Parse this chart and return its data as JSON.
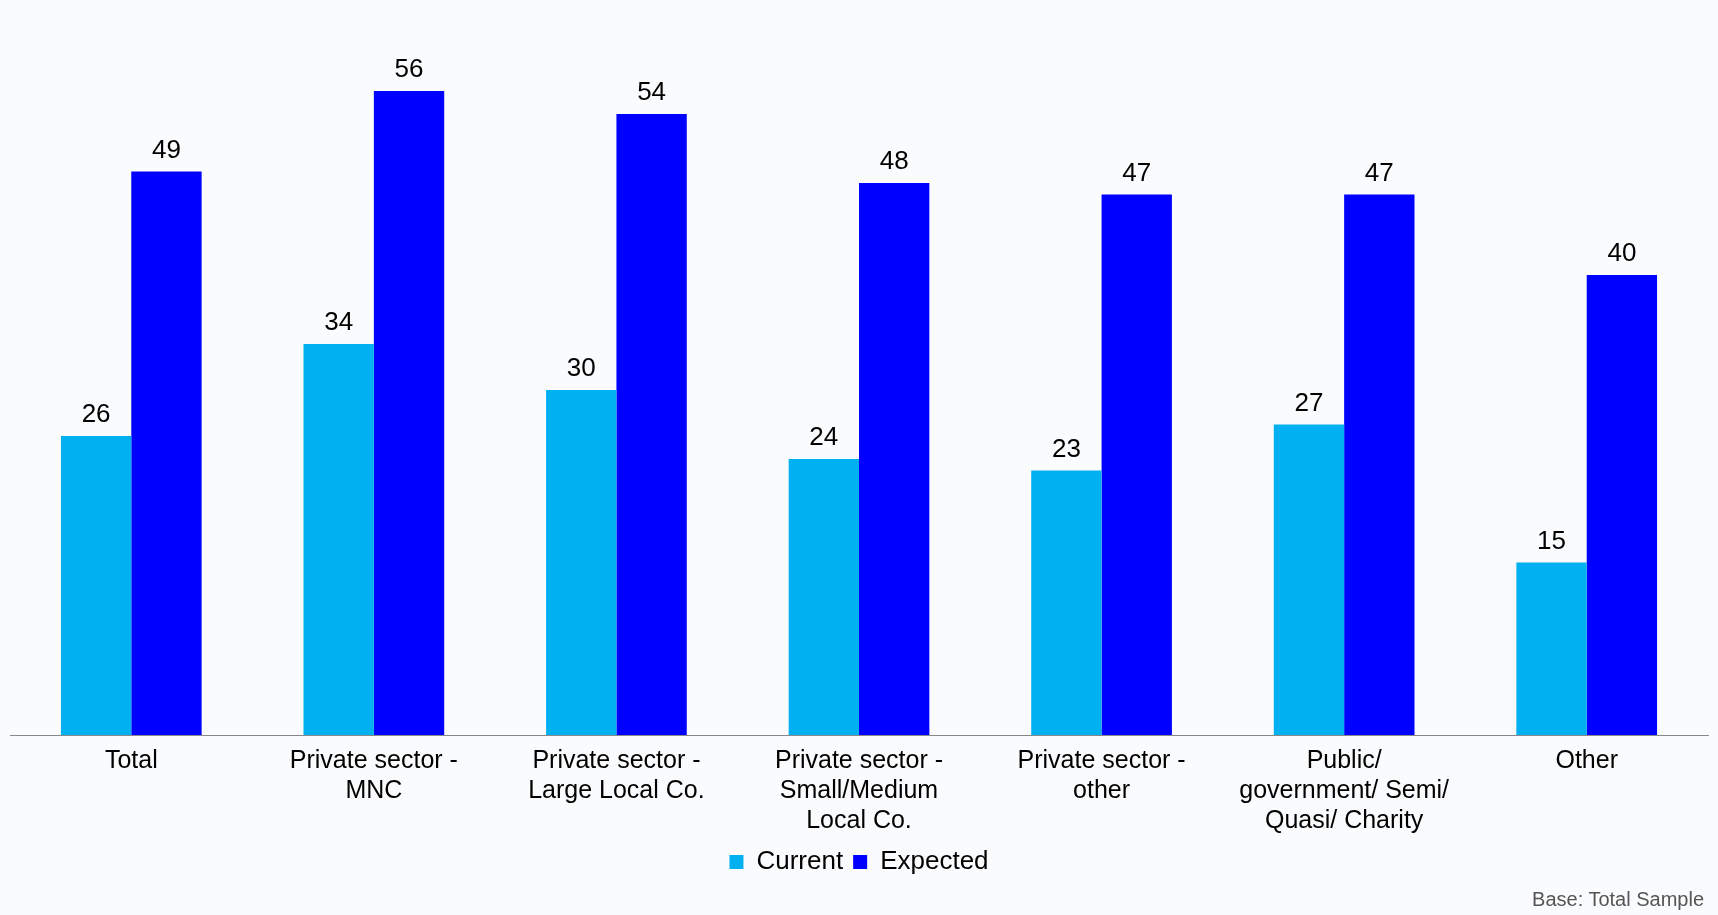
{
  "chart_data": {
    "type": "bar",
    "categories": [
      "Total",
      "Private sector - MNC",
      "Private sector - Large Local Co.",
      "Private sector - Small/Medium Local Co.",
      "Private sector - other",
      "Public/ government/ Semi/ Quasi/ Charity",
      "Other"
    ],
    "series": [
      {
        "name": "Current",
        "color": "#00b0f0",
        "values": [
          26,
          34,
          30,
          24,
          23,
          27,
          15
        ]
      },
      {
        "name": "Expected",
        "color": "#0000ff",
        "values": [
          49,
          56,
          54,
          48,
          47,
          47,
          40
        ]
      }
    ],
    "data_labels": true,
    "legend": "bottom",
    "grid": false,
    "annotations": [
      "Base: Total Sample"
    ]
  }
}
